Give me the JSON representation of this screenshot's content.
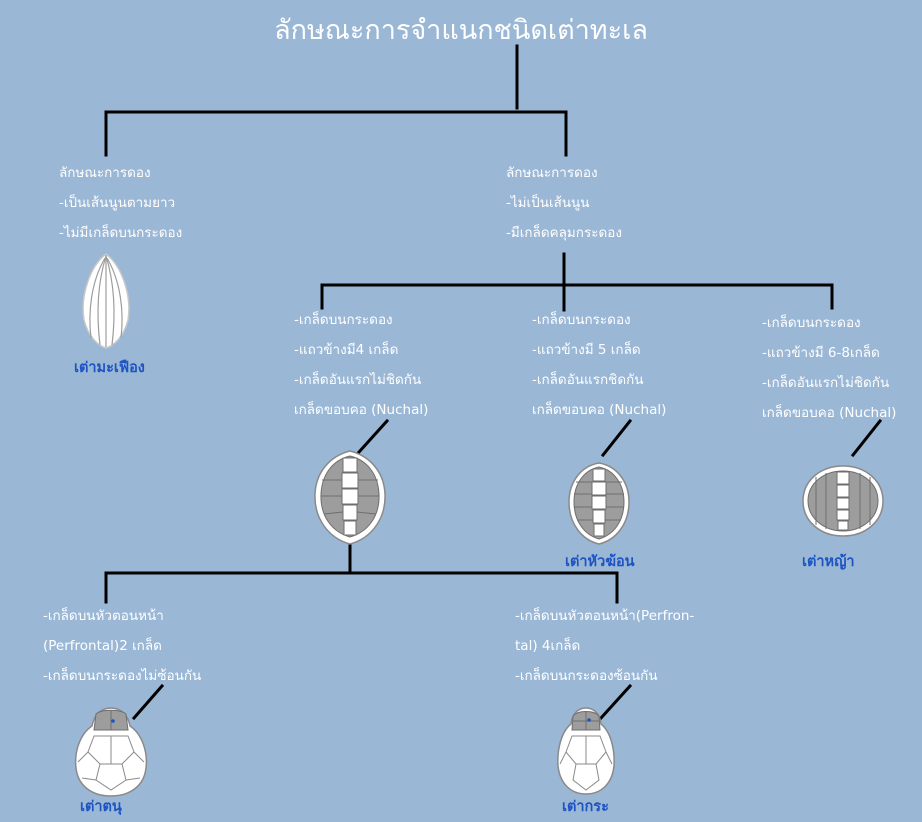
{
  "title": "ลักษณะการจำแนกชนิดเต่าทะเล",
  "branches": {
    "left": {
      "lines": [
        "ลักษณะการดอง",
        "-เป็นเส้นนูนตามยาว",
        "-ไม่มีเกล็ดบนกระดอง"
      ],
      "species": "เต่ามะเฟือง"
    },
    "right": {
      "lines": [
        "ลักษณะการดอง",
        "-ไม่เป็นเส้นนูน",
        "-มีเกล็ดคลุมกระดอง"
      ]
    },
    "mid_a": {
      "lines": [
        "-เกล็ดบนกระดอง",
        "-แถวข้างมี4 เกล็ด",
        "-เกล็ดอันแรกไม่ชิดกัน",
        "เกล็ดขอบคอ (Nuchal)"
      ]
    },
    "mid_b": {
      "lines": [
        "-เกล็ดบนกระดอง",
        "-แถวข้างมี 5 เกล็ด",
        "-เกล็ดอันแรกชิดกัน",
        "เกล็ดขอบคอ (Nuchal)"
      ],
      "species": "เต่าหัวฆ้อน"
    },
    "mid_c": {
      "lines": [
        "-เกล็ดบนกระดอง",
        "-แถวข้างมี 6-8เกล็ด",
        "-เกล็ดอันแรกไม่ชิดกัน",
        "เกล็ดขอบคอ (Nuchal)"
      ],
      "species": "เต่าหญ้า"
    },
    "low_a": {
      "lines": [
        "-เกล็ดบนหัวตอนหน้า",
        "(Perfrontal)2 เกล็ด",
        "-เกล็ดบนกระดองไม่ซ้อนกัน"
      ],
      "species": "เต่าตนุ"
    },
    "low_b": {
      "lines": [
        "-เกล็ดบนหัวตอนหน้า(Perfron-",
        "tal) 4เกล็ด",
        "-เกล็ดบนกระดองซ้อนกัน"
      ],
      "species": "เต่ากระ"
    }
  },
  "icons": [
    "leatherback-shell-icon",
    "shell-icon",
    "loggerhead-shell-icon",
    "hawksbill-shell-icon",
    "green-turtle-head-icon",
    "hawksbill-head-icon"
  ],
  "colors": {
    "background": "#9ab7d5",
    "text": "#ffffff",
    "species_label": "#1d54c2",
    "connector": "#000000",
    "scute": "#9d9d9d",
    "scute_light": "#ffffff"
  }
}
